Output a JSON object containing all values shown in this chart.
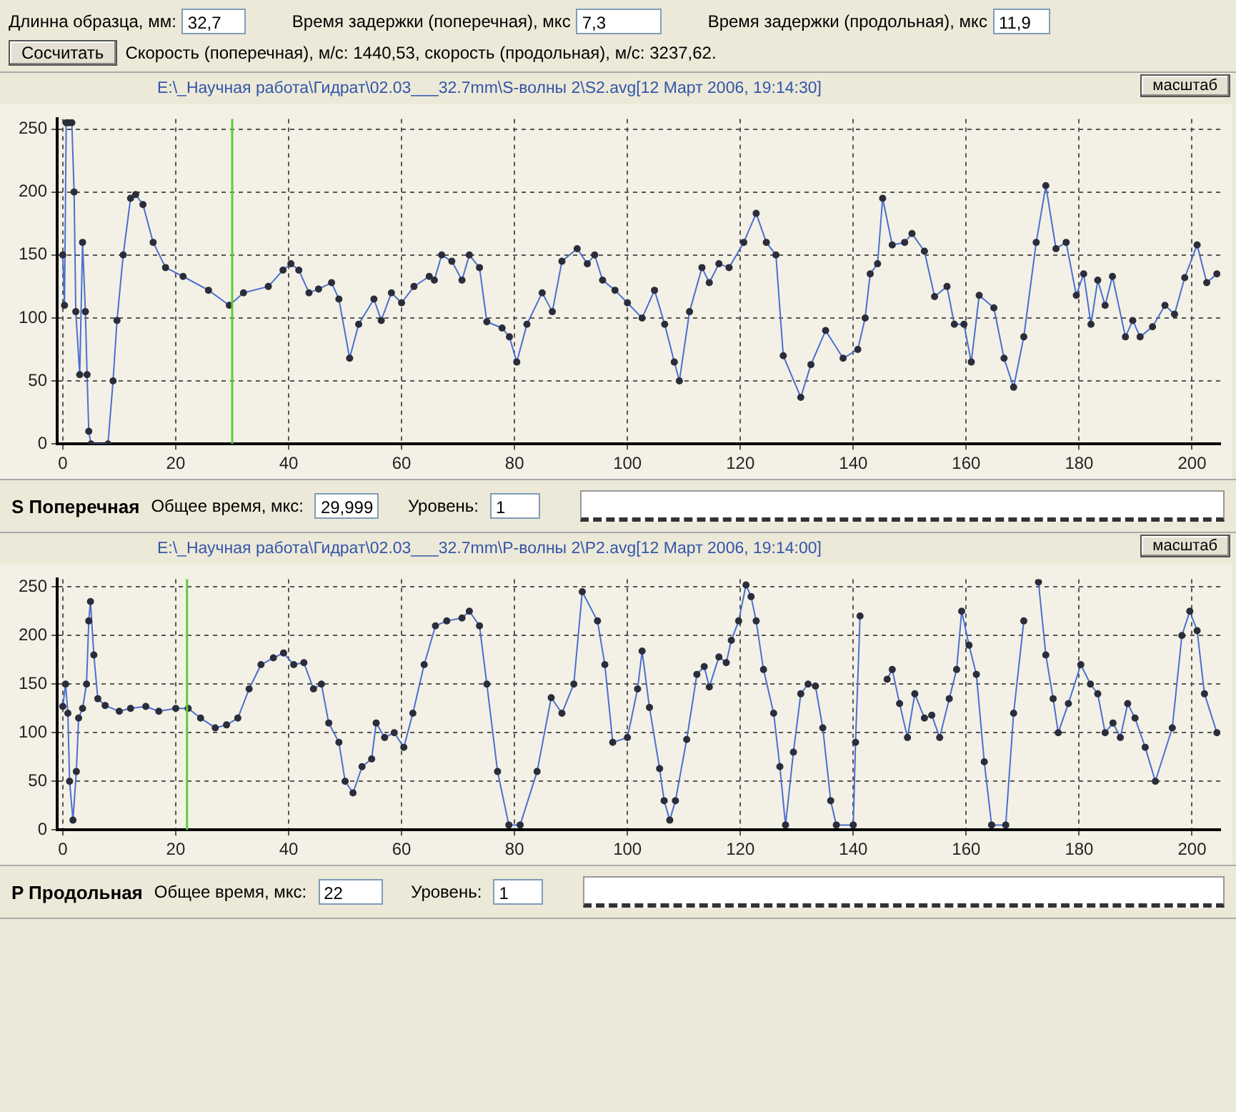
{
  "chart_data": [
    {
      "type": "line",
      "title": "E:\\_Научная работа\\Гидрат\\02.03___32.7mm\\S-волны 2\\S2.avg[12 Март 2006, 19:14:30]",
      "annotations": [
        "Длинна образца, мм:",
        "32,7",
        "Время задержки (поперечная), мкс",
        "7,3",
        "Время задержки (продольная), мкс",
        "11,9",
        "Сосчитать",
        "Скорость (поперечная), м/с: 1440,53, скорость (продольная), м/с: 3237,62.",
        "масштаб",
        "S Поперечная",
        "Общее время, мкс:",
        "29,999",
        "Уровень:",
        "1"
      ],
      "xlim": [
        -1,
        205
      ],
      "ylim": [
        0,
        258
      ],
      "xticks": [
        0,
        20,
        40,
        60,
        80,
        100,
        120,
        140,
        160,
        180,
        200
      ],
      "yticks": [
        0,
        50,
        100,
        150,
        200,
        250
      ],
      "grid": true,
      "marker": "circle",
      "line_style": "solid",
      "ref_lines": [
        {
          "axis": "x",
          "value": 30,
          "color": "#5ccc3c"
        }
      ],
      "series": [
        {
          "color": "#2b2d3a",
          "x": [
            0,
            0.3,
            0.6,
            1,
            1.6,
            2,
            2.3,
            3,
            3.5,
            4,
            4.3,
            4.6,
            5,
            8,
            8.9,
            9.6,
            10.7,
            12,
            12.9,
            14.2,
            16,
            18.2,
            21.3,
            25.8,
            29.5,
            32,
            36.4,
            39,
            40.4,
            41.8,
            43.6,
            45.3,
            47.6,
            48.9,
            50.8,
            52.4,
            55.1,
            56.4,
            58.2,
            60,
            62.2,
            64.9,
            65.8,
            67.1,
            68.9,
            70.7,
            72,
            73.8,
            75.1,
            77.8,
            79.1,
            80.4,
            82.2,
            84.9,
            86.7,
            88.4,
            91.1,
            92.9,
            94.2,
            95.6,
            97.8,
            100,
            102.6,
            104.8,
            106.6,
            108.3,
            109.2,
            111,
            113.2,
            114.5,
            116.2,
            118,
            120.6,
            122.8,
            124.6,
            126.3,
            127.6,
            130.7,
            132.5,
            135.1,
            138.2,
            140.8,
            142.1,
            143,
            144.3,
            145.2,
            146.9,
            149.1,
            150.4,
            152.6,
            154.4,
            156.6,
            157.9,
            159.6,
            160.9,
            162.3,
            164.9,
            166.7,
            168.4,
            170.2,
            172.4,
            174.1,
            175.9,
            177.7,
            179.5,
            180.8,
            182.1,
            183.3,
            184.6,
            185.9,
            188.2,
            189.5,
            190.8,
            193,
            195.2,
            196.9,
            198.7,
            200.9,
            202.6,
            204.4
          ],
          "values": [
            150,
            110,
            255,
            255,
            255,
            200,
            105,
            55,
            160,
            105,
            55,
            10,
            0,
            0,
            50,
            98,
            150,
            195,
            198,
            190,
            160,
            140,
            133,
            122,
            110,
            120,
            125,
            138,
            143,
            138,
            120,
            123,
            128,
            115,
            68,
            95,
            115,
            98,
            120,
            112,
            125,
            133,
            130,
            150,
            145,
            130,
            150,
            140,
            97,
            92,
            85,
            65,
            95,
            120,
            105,
            145,
            155,
            143,
            150,
            130,
            122,
            112,
            100,
            122,
            95,
            65,
            50,
            105,
            140,
            128,
            143,
            140,
            160,
            183,
            160,
            150,
            70,
            37,
            63,
            90,
            68,
            75,
            100,
            135,
            143,
            195,
            158,
            160,
            167,
            153,
            117,
            125,
            95,
            95,
            65,
            118,
            108,
            68,
            45,
            85,
            160,
            205,
            155,
            160,
            118,
            135,
            95,
            130,
            110,
            133,
            85,
            98,
            85,
            93,
            110,
            103,
            132,
            158,
            128,
            135
          ]
        }
      ]
    },
    {
      "type": "line",
      "title": "E:\\_Научная работа\\Гидрат\\02.03___32.7mm\\P-волны 2\\P2.avg[12 Март 2006, 19:14:00]",
      "annotations": [
        "масштаб",
        "P Продольная",
        "Общее время, мкс:",
        "22",
        "Уровень:",
        "1"
      ],
      "xlim": [
        -1,
        205
      ],
      "ylim": [
        0,
        258
      ],
      "xticks": [
        0,
        20,
        40,
        60,
        80,
        100,
        120,
        140,
        160,
        180,
        200
      ],
      "yticks": [
        0,
        50,
        100,
        150,
        200,
        250
      ],
      "grid": true,
      "marker": "circle",
      "line_style": "solid",
      "ref_lines": [
        {
          "axis": "x",
          "value": 22,
          "color": "#5ccc3c"
        }
      ],
      "series": [
        {
          "color": "#2b2d3a",
          "x": [
            0,
            0.5,
            0.9,
            1.2,
            1.8,
            2.4,
            2.8,
            3.5,
            4.2,
            4.6,
            4.9,
            5.5,
            6.2,
            7.5,
            10,
            12,
            14.7,
            17,
            20,
            22.2,
            24.4,
            27,
            29,
            31,
            33,
            35.1,
            37.3,
            39.1,
            40.9,
            42.7,
            44.4,
            45.8,
            47.1,
            48.9,
            50,
            51.4,
            53,
            54.7,
            55.5,
            57,
            58.7,
            60.4,
            62,
            64,
            66,
            68,
            70.7,
            72,
            73.8,
            75.1,
            77,
            79,
            81,
            84,
            86.5,
            88.4,
            90.5,
            92,
            94.7,
            96,
            97.4,
            100,
            101.8,
            102.6,
            103.9,
            105.7,
            106.5,
            107.5,
            108.5,
            110.5,
            112.3,
            113.6,
            114.5,
            116.2,
            117.5,
            118.4,
            119.7,
            121,
            121.9,
            122.8,
            124.1,
            125.9,
            127,
            128,
            129.4,
            130.7,
            132,
            133.3,
            134.6,
            136,
            137,
            140,
            140.4,
            141.2,
            142.1,
            144.7,
            146,
            146.9,
            148.2,
            149.6,
            150.9,
            152.6,
            153.9,
            155.3,
            157,
            158.3,
            159.2,
            160.5,
            161.8,
            163.2,
            164.5,
            167,
            168.4,
            170.2,
            171.5,
            172.8,
            174.1,
            175.4,
            176.3,
            178.1,
            180.3,
            182,
            183.3,
            184.6,
            186,
            187.3,
            188.6,
            189.9,
            191.7,
            193.5,
            196.5,
            198.2,
            199.6,
            200.9,
            202.2,
            204.4
          ],
          "values": [
            127,
            150,
            120,
            50,
            10,
            60,
            115,
            125,
            150,
            215,
            235,
            180,
            135,
            128,
            122,
            125,
            127,
            122,
            125,
            125,
            115,
            105,
            108,
            115,
            145,
            170,
            177,
            182,
            170,
            172,
            145,
            150,
            110,
            90,
            50,
            38,
            65,
            73,
            110,
            95,
            100,
            85,
            120,
            170,
            210,
            215,
            218,
            225,
            210,
            150,
            60,
            5,
            5,
            60,
            136,
            120,
            150,
            245,
            215,
            170,
            90,
            95,
            145,
            184,
            126,
            63,
            30,
            10,
            30,
            93,
            160,
            168,
            147,
            178,
            172,
            195,
            215,
            252,
            240,
            215,
            165,
            120,
            65,
            5,
            80,
            140,
            150,
            148,
            105,
            30,
            5,
            5,
            90,
            220,
            null,
            null,
            155,
            165,
            130,
            95,
            140,
            115,
            118,
            95,
            135,
            165,
            225,
            190,
            160,
            70,
            5,
            5,
            120,
            215,
            null,
            255,
            180,
            135,
            100,
            130,
            170,
            150,
            140,
            100,
            110,
            95,
            130,
            115,
            85,
            50,
            105,
            200,
            225,
            205,
            140,
            100
          ]
        }
      ]
    }
  ]
}
